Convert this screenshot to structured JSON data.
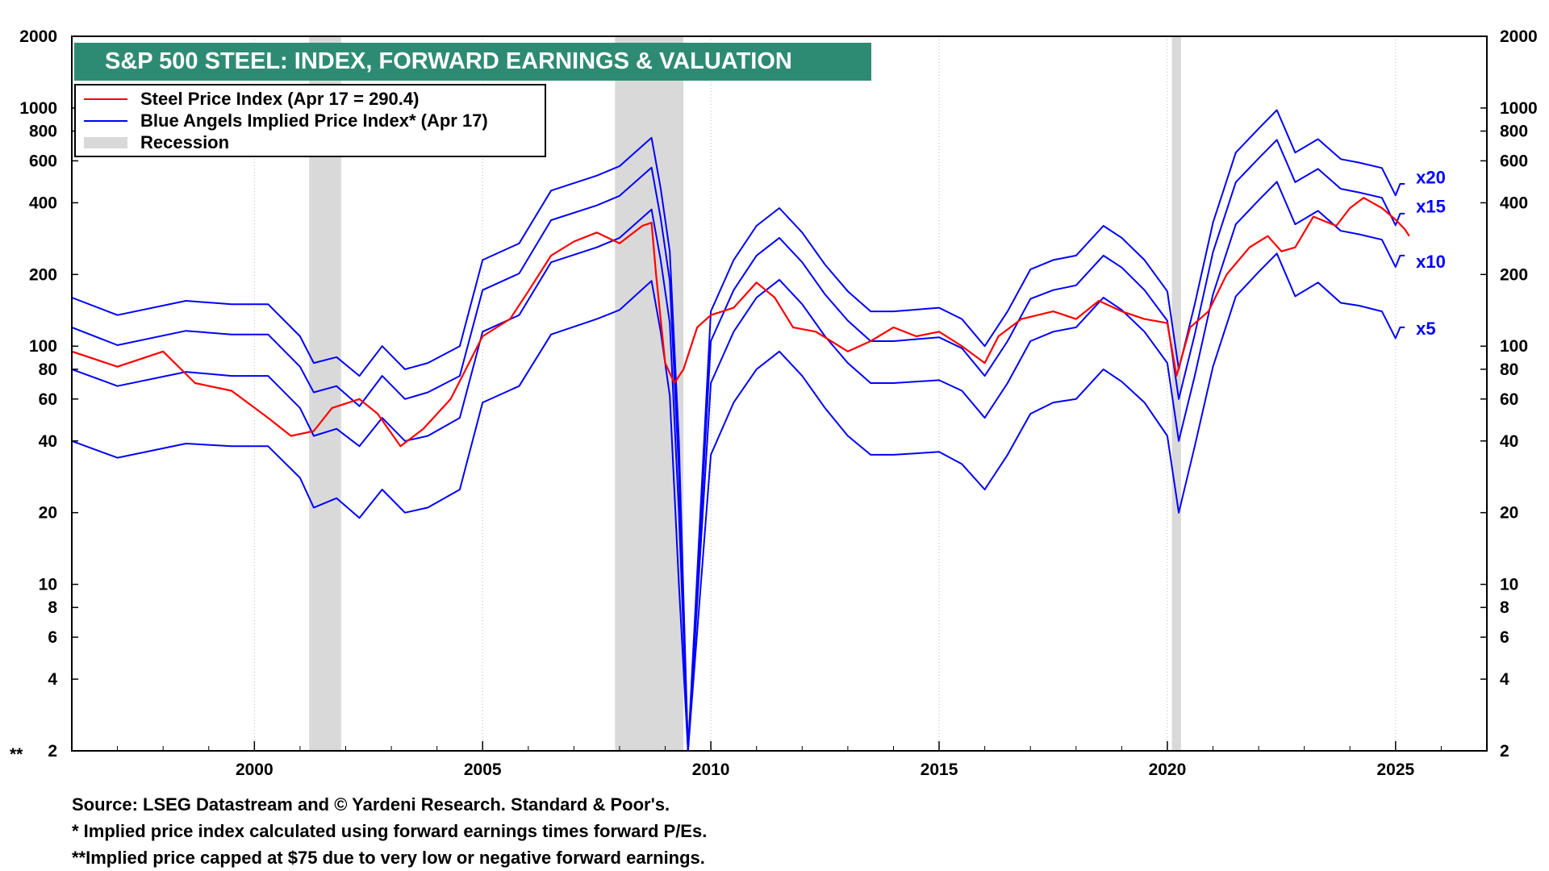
{
  "chart_data": {
    "type": "line",
    "title": "S&P 500 STEEL: INDEX, FORWARD EARNINGS & VALUATION",
    "y_scale": "log",
    "ylim": [
      2,
      2000
    ],
    "xlim": [
      1996.0,
      2027.0
    ],
    "y_ticks": [
      2,
      4,
      6,
      8,
      10,
      20,
      40,
      60,
      80,
      100,
      200,
      400,
      600,
      800,
      1000,
      2000
    ],
    "y_tick_labels": [
      "2",
      "4",
      "6",
      "8",
      "10",
      "20",
      "40",
      "60",
      "80",
      "100",
      "200",
      "400",
      "600",
      "800",
      "1000",
      "2000"
    ],
    "x_ticks": [
      2000,
      2005,
      2010,
      2015,
      2020,
      2025
    ],
    "x_tick_labels": [
      "2000",
      "2005",
      "2010",
      "2015",
      "2020",
      "2025"
    ],
    "axis_marker": "**",
    "recessions": [
      [
        2001.2,
        2001.9
      ],
      [
        2007.9,
        2009.4
      ],
      [
        2020.1,
        2020.3
      ]
    ],
    "legend": [
      {
        "label": "Steel Price Index (Apr 17 = 290.4)",
        "color": "#ff0000",
        "kind": "line"
      },
      {
        "label": "Blue Angels Implied Price Index* (Apr 17)",
        "color": "#0000ff",
        "kind": "line"
      },
      {
        "label": "Recession",
        "color": "#d9d9d9",
        "kind": "band"
      }
    ],
    "series": [
      {
        "name": "Steel Price Index",
        "color": "#ff0000",
        "x": [
          1996.0,
          1997.0,
          1998.0,
          1998.7,
          1999.5,
          2000.3,
          2000.8,
          2001.3,
          2001.7,
          2002.3,
          2002.7,
          2003.2,
          2003.7,
          2004.3,
          2005.0,
          2005.6,
          2006.0,
          2006.5,
          2007.0,
          2007.5,
          2008.0,
          2008.5,
          2008.7,
          2008.8,
          2009.0,
          2009.2,
          2009.4,
          2009.7,
          2010.0,
          2010.5,
          2011.0,
          2011.4,
          2011.8,
          2012.3,
          2013.0,
          2013.5,
          2014.0,
          2014.5,
          2015.0,
          2015.5,
          2016.0,
          2016.3,
          2016.8,
          2017.5,
          2018.0,
          2018.5,
          2019.0,
          2019.5,
          2020.0,
          2020.2,
          2020.5,
          2020.9,
          2021.3,
          2021.8,
          2022.2,
          2022.5,
          2022.8,
          2023.2,
          2023.7,
          2024.0,
          2024.3,
          2024.7,
          2025.0,
          2025.2,
          2025.3
        ],
        "values": [
          95,
          82,
          95,
          70,
          65,
          50,
          42,
          44,
          55,
          60,
          52,
          38,
          45,
          60,
          110,
          130,
          170,
          240,
          275,
          300,
          270,
          320,
          330,
          200,
          85,
          70,
          80,
          120,
          135,
          145,
          185,
          160,
          120,
          115,
          95,
          105,
          120,
          110,
          115,
          100,
          85,
          110,
          130,
          140,
          130,
          155,
          140,
          130,
          125,
          75,
          120,
          140,
          200,
          260,
          290,
          250,
          260,
          350,
          320,
          380,
          420,
          380,
          340,
          310,
          290
        ]
      },
      {
        "name": "Implied x20",
        "color": "#0000ff",
        "x": [
          1996.0,
          1997.0,
          1998.5,
          1999.5,
          2000.3,
          2001.0,
          2001.3,
          2001.8,
          2002.3,
          2002.8,
          2003.3,
          2003.8,
          2004.5,
          2005.0,
          2005.8,
          2006.5,
          2007.5,
          2008.0,
          2008.7,
          2008.9,
          2009.1,
          2009.3,
          2009.5,
          2010.0,
          2010.5,
          2011.0,
          2011.5,
          2012.0,
          2012.5,
          2013.0,
          2013.5,
          2014.0,
          2015.0,
          2015.5,
          2016.0,
          2016.5,
          2017.0,
          2017.5,
          2018.0,
          2018.6,
          2019.0,
          2019.5,
          2020.0,
          2020.25,
          2020.6,
          2021.0,
          2021.5,
          2022.0,
          2022.4,
          2022.8,
          2023.3,
          2023.8,
          2024.2,
          2024.7,
          2025.0,
          2025.1,
          2025.2
        ],
        "values": [
          160,
          135,
          155,
          150,
          150,
          110,
          85,
          90,
          75,
          100,
          80,
          85,
          100,
          230,
          270,
          450,
          520,
          570,
          750,
          460,
          250,
          40,
          2,
          140,
          230,
          320,
          380,
          300,
          220,
          170,
          140,
          140,
          145,
          130,
          100,
          140,
          210,
          230,
          240,
          320,
          285,
          230,
          170,
          80,
          150,
          330,
          650,
          820,
          980,
          650,
          740,
          610,
          590,
          560,
          430,
          480,
          480
        ]
      },
      {
        "name": "Implied x15",
        "color": "#0000ff",
        "x": [
          1996.0,
          1997.0,
          1998.5,
          1999.5,
          2000.3,
          2001.0,
          2001.3,
          2001.8,
          2002.3,
          2002.8,
          2003.3,
          2003.8,
          2004.5,
          2005.0,
          2005.8,
          2006.5,
          2007.5,
          2008.0,
          2008.7,
          2008.9,
          2009.1,
          2009.3,
          2009.5,
          2010.0,
          2010.5,
          2011.0,
          2011.5,
          2012.0,
          2012.5,
          2013.0,
          2013.5,
          2014.0,
          2015.0,
          2015.5,
          2016.0,
          2016.5,
          2017.0,
          2017.5,
          2018.0,
          2018.6,
          2019.0,
          2019.5,
          2020.0,
          2020.25,
          2020.6,
          2021.0,
          2021.5,
          2022.0,
          2022.4,
          2022.8,
          2023.3,
          2023.8,
          2024.2,
          2024.7,
          2025.0,
          2025.1,
          2025.2
        ],
        "values": [
          120,
          101,
          116,
          112,
          112,
          82,
          64,
          68,
          56,
          75,
          60,
          64,
          75,
          172,
          202,
          338,
          390,
          428,
          562,
          345,
          188,
          30,
          2,
          105,
          172,
          240,
          285,
          225,
          165,
          128,
          105,
          105,
          109,
          98,
          75,
          105,
          158,
          172,
          180,
          240,
          214,
          172,
          128,
          60,
          112,
          248,
          488,
          615,
          735,
          488,
          555,
          458,
          442,
          420,
          322,
          360,
          360
        ]
      },
      {
        "name": "Implied x10",
        "color": "#0000ff",
        "x": [
          1996.0,
          1997.0,
          1998.5,
          1999.5,
          2000.3,
          2001.0,
          2001.3,
          2001.8,
          2002.3,
          2002.8,
          2003.3,
          2003.8,
          2004.5,
          2005.0,
          2005.8,
          2006.5,
          2007.5,
          2008.0,
          2008.7,
          2008.9,
          2009.1,
          2009.3,
          2009.5,
          2010.0,
          2010.5,
          2011.0,
          2011.5,
          2012.0,
          2012.5,
          2013.0,
          2013.5,
          2014.0,
          2015.0,
          2015.5,
          2016.0,
          2016.5,
          2017.0,
          2017.5,
          2018.0,
          2018.6,
          2019.0,
          2019.5,
          2020.0,
          2020.25,
          2020.6,
          2021.0,
          2021.5,
          2022.0,
          2022.4,
          2022.8,
          2023.3,
          2023.8,
          2024.2,
          2024.7,
          2025.0,
          2025.1,
          2025.2
        ],
        "values": [
          80,
          68,
          78,
          75,
          75,
          55,
          42,
          45,
          38,
          50,
          40,
          42,
          50,
          115,
          135,
          225,
          260,
          285,
          375,
          230,
          125,
          20,
          2,
          70,
          115,
          160,
          190,
          150,
          110,
          85,
          70,
          70,
          72,
          65,
          50,
          70,
          105,
          115,
          120,
          160,
          142,
          115,
          85,
          40,
          75,
          165,
          325,
          410,
          490,
          325,
          370,
          305,
          295,
          280,
          215,
          240,
          240
        ]
      },
      {
        "name": "Implied x5",
        "color": "#0000ff",
        "x": [
          1996.0,
          1997.0,
          1998.5,
          1999.5,
          2000.3,
          2001.0,
          2001.3,
          2001.8,
          2002.3,
          2002.8,
          2003.3,
          2003.8,
          2004.5,
          2005.0,
          2005.8,
          2006.5,
          2007.5,
          2008.0,
          2008.7,
          2008.9,
          2009.1,
          2009.3,
          2009.5,
          2010.0,
          2010.5,
          2011.0,
          2011.5,
          2012.0,
          2012.5,
          2013.0,
          2013.5,
          2014.0,
          2015.0,
          2015.5,
          2016.0,
          2016.5,
          2017.0,
          2017.5,
          2018.0,
          2018.6,
          2019.0,
          2019.5,
          2020.0,
          2020.25,
          2020.6,
          2021.0,
          2021.5,
          2022.0,
          2022.4,
          2022.8,
          2023.3,
          2023.8,
          2024.2,
          2024.7,
          2025.0,
          2025.1,
          2025.2
        ],
        "values": [
          40,
          34,
          39,
          38,
          38,
          28,
          21,
          23,
          19,
          25,
          20,
          21,
          25,
          58,
          68,
          112,
          130,
          142,
          188,
          115,
          62,
          10,
          2,
          35,
          58,
          80,
          95,
          75,
          55,
          42,
          35,
          35,
          36,
          32,
          25,
          35,
          52,
          58,
          60,
          80,
          71,
          58,
          42,
          20,
          38,
          82,
          162,
          205,
          245,
          162,
          185,
          152,
          148,
          140,
          108,
          120,
          120
        ]
      }
    ],
    "series_end_labels": [
      {
        "label": "x20",
        "y": 510
      },
      {
        "label": "x15",
        "y": 385
      },
      {
        "label": "x10",
        "y": 225
      },
      {
        "label": "x5",
        "y": 118
      }
    ]
  },
  "footnotes": {
    "source": "Source: LSEG Datastream and © Yardeni Research. Standard & Poor's.",
    "note1": "* Implied price index calculated using forward earnings times forward P/Es.",
    "note2": "**Implied price capped at $75 due to very low or negative forward earnings."
  }
}
